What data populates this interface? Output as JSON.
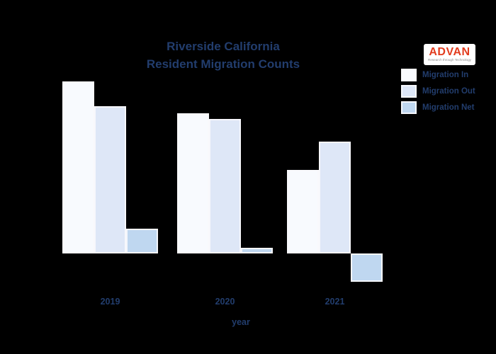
{
  "page": {
    "background": "#000000"
  },
  "title": {
    "line1": "Riverside California",
    "line2": "Resident Migration Counts",
    "color": "#223d6d"
  },
  "logo": {
    "brand": "ADVAN",
    "tagline": "Research through Technology",
    "brand_color": "#e23c1e",
    "background": "#ffffff"
  },
  "x_axis": {
    "label": "year",
    "ticks": [
      "2019",
      "2020",
      "2021"
    ]
  },
  "chart_data": {
    "type": "bar",
    "title": "Riverside California Resident Migration Counts",
    "categories": [
      "2019",
      "2020",
      "2021"
    ],
    "series": [
      {
        "name": "Migration In",
        "color": "#f8fafe",
        "values": [
          243,
          198,
          118
        ]
      },
      {
        "name": "Migration Out",
        "color": "#dee7f7",
        "values": [
          208,
          190,
          158
        ]
      },
      {
        "name": "Migration Net",
        "color": "#bfd7f0",
        "values": [
          35,
          8,
          -40
        ]
      }
    ],
    "xlabel": "year",
    "ylabel": "",
    "y_axis_visible": false,
    "units": "relative bar heights (no y-axis tick labels shown in image)",
    "ylim": [
      -60,
      260
    ],
    "grid": false,
    "legend_position": "top-right",
    "bar_outline_color": "#f8f9fc",
    "background": "transparent-black"
  }
}
